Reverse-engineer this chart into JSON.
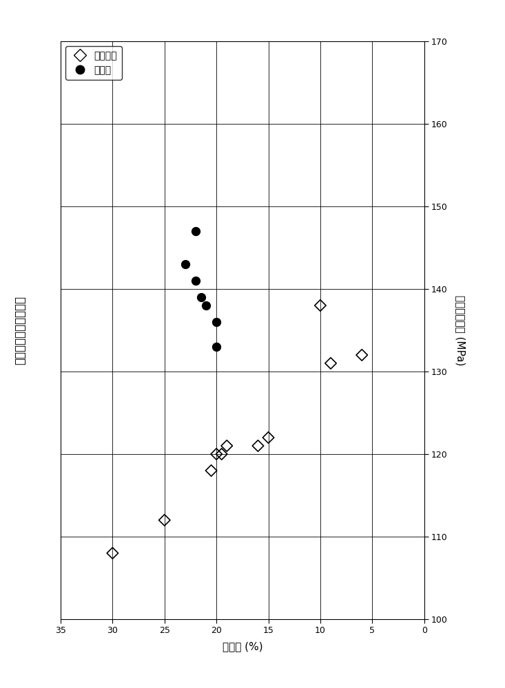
{
  "title_left": "拉伸屈服强度对伸长率",
  "x_label": "伸长率 (%)",
  "y_label_right": "拉伸屈服强度 (MPa)",
  "xlim": [
    35,
    0
  ],
  "ylim": [
    100,
    170
  ],
  "x_ticks": [
    35,
    30,
    25,
    20,
    15,
    10,
    5,
    0
  ],
  "y_ticks": [
    100,
    110,
    120,
    130,
    140,
    150,
    160,
    170
  ],
  "vgrid": [
    30,
    25,
    20,
    15,
    10,
    5
  ],
  "hgrid": [
    110,
    120,
    130,
    140,
    150,
    160
  ],
  "non_inv_elong": [
    30,
    25,
    20.5,
    19.5,
    20,
    19,
    16,
    15,
    10,
    9,
    6
  ],
  "non_inv_mpa": [
    108,
    112,
    118,
    120,
    120,
    121,
    121,
    122,
    138,
    131,
    132
  ],
  "inv_elong": [
    22,
    23,
    22,
    21.5,
    21,
    20,
    20
  ],
  "inv_mpa": [
    147,
    143,
    141,
    139,
    138,
    136,
    133
  ],
  "legend_1": "非本发明",
  "legend_2": "本发明",
  "bg_color": "#ffffff"
}
